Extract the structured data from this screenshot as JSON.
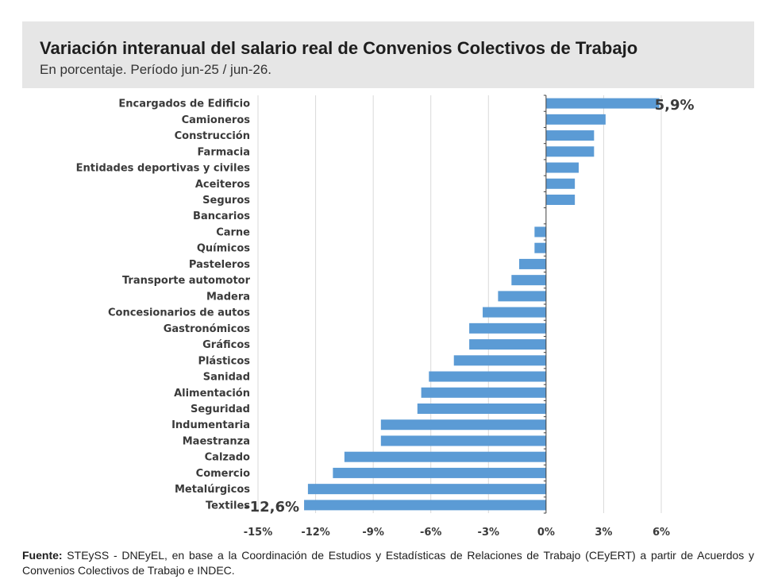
{
  "header": {
    "title": "Variación interanual del salario real de Convenios Colectivos de Trabajo",
    "subtitle": "En porcentaje. Período jun-25 / jun-26."
  },
  "chart_data": {
    "type": "bar",
    "orientation": "horizontal",
    "categories": [
      "Encargados de Edificio",
      "Camioneros",
      "Construcción",
      "Farmacia",
      "Entidades deportivas y civiles",
      "Aceiteros",
      "Seguros",
      "Bancarios",
      "Carne",
      "Químicos",
      "Pasteleros",
      "Transporte automotor",
      "Madera",
      "Concesionarios de autos",
      "Gastronómicos",
      "Gráficos",
      "Plásticos",
      "Sanidad",
      "Alimentación",
      "Seguridad",
      "Indumentaria",
      "Maestranza",
      "Calzado",
      "Comercio",
      "Metalúrgicos",
      "Textiles"
    ],
    "values": [
      5.9,
      3.1,
      2.5,
      2.5,
      1.7,
      1.5,
      1.5,
      0.0,
      -0.6,
      -0.6,
      -1.4,
      -1.8,
      -2.5,
      -3.3,
      -4.0,
      -4.0,
      -4.8,
      -6.1,
      -6.5,
      -6.7,
      -8.6,
      -8.6,
      -10.5,
      -11.1,
      -12.4,
      -12.6
    ],
    "xlim": [
      -15,
      6
    ],
    "ticks": [
      -15,
      -12,
      -9,
      -6,
      -3,
      0,
      3,
      6
    ],
    "tick_labels": [
      "-15%",
      "-12%",
      "-9%",
      "-6%",
      "-3%",
      "0%",
      "3%",
      "6%"
    ],
    "data_labels": [
      {
        "category": "Encargados de Edificio",
        "text": "5,9%"
      },
      {
        "category": "Textiles",
        "text": "-12,6%"
      }
    ],
    "bar_color": "#5b9bd5",
    "grid": true,
    "legend": "none"
  },
  "footer": {
    "source_label": "Fuente:",
    "source_text": " STEySS - DNEyEL, en base a la Coordinación de Estudios y Estadísticas de Relaciones de Trabajo (CEyERT) a partir de Acuerdos y Convenios Colectivos de Trabajo e INDEC."
  }
}
